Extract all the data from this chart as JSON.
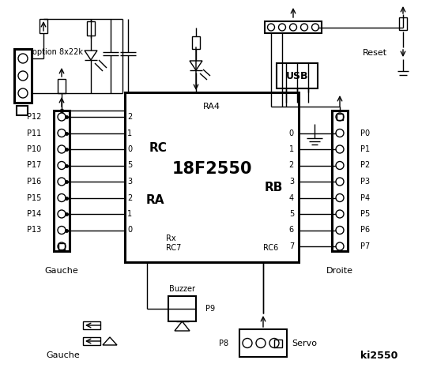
{
  "title": "ki2550",
  "chip_label": "18F2550",
  "chip_sublabel": "RA4",
  "rc_label": "RC",
  "ra_label": "RA",
  "rb_label": "RB",
  "rc_pins": [
    "2",
    "1",
    "0",
    "5",
    "3",
    "2",
    "1",
    "0"
  ],
  "rb_pins": [
    "0",
    "1",
    "2",
    "3",
    "4",
    "5",
    "6",
    "7"
  ],
  "left_labels": [
    "P12",
    "P11",
    "P10",
    "P17",
    "P16",
    "P15",
    "P14",
    "P13"
  ],
  "right_labels": [
    "P0",
    "P1",
    "P2",
    "P3",
    "P4",
    "P5",
    "P6",
    "P7"
  ],
  "option_text": "option 8x22k",
  "droite_text": "Droite",
  "gauche_text": "Gauche",
  "servo_text": "Servo",
  "buzzer_text": "Buzzer",
  "usb_text": "USB",
  "reset_text": "Reset",
  "rx_text": "Rx",
  "rc7_text": "RC7",
  "rc6_text": "RC6",
  "p9_text": "P9",
  "p8_text": "P8"
}
